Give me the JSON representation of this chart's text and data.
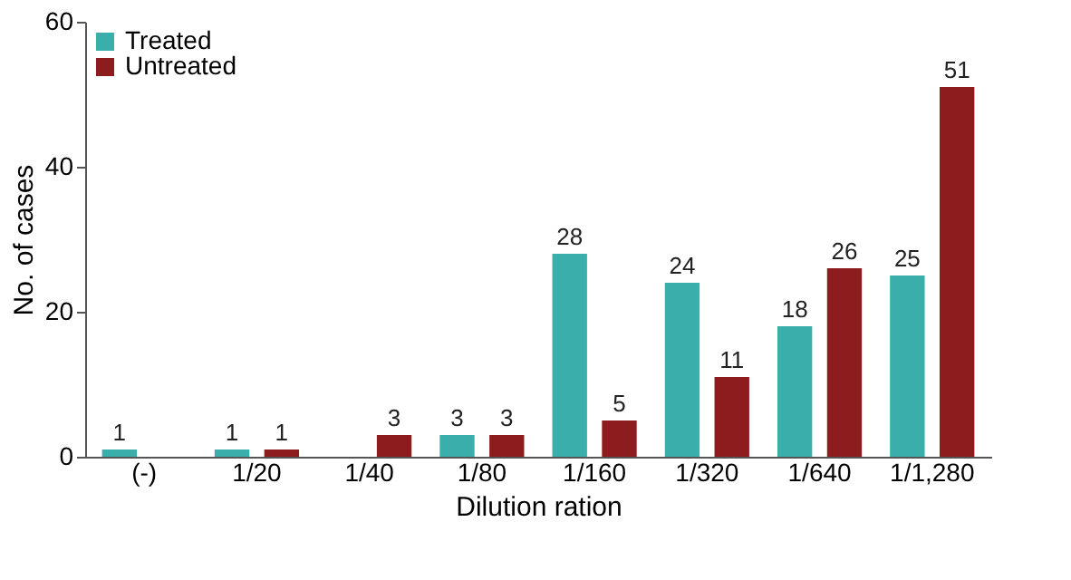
{
  "chart_data": {
    "type": "bar",
    "xlabel": "Dilution ration",
    "ylabel": "No. of cases",
    "categories": [
      "(-)",
      "1/20",
      "1/40",
      "1/80",
      "1/160",
      "1/320",
      "1/640",
      "1/1,280"
    ],
    "series": [
      {
        "name": "Treated",
        "color": "#3aaeaa",
        "values": [
          1,
          1,
          null,
          3,
          28,
          24,
          18,
          25
        ]
      },
      {
        "name": "Untreated",
        "color": "#8c1c1e",
        "values": [
          null,
          1,
          3,
          3,
          5,
          11,
          26,
          51
        ]
      }
    ],
    "ylim": [
      0,
      60
    ],
    "yticks": [
      0,
      20,
      40,
      60
    ],
    "grid": false,
    "legend": "top left",
    "data_labels": true
  }
}
